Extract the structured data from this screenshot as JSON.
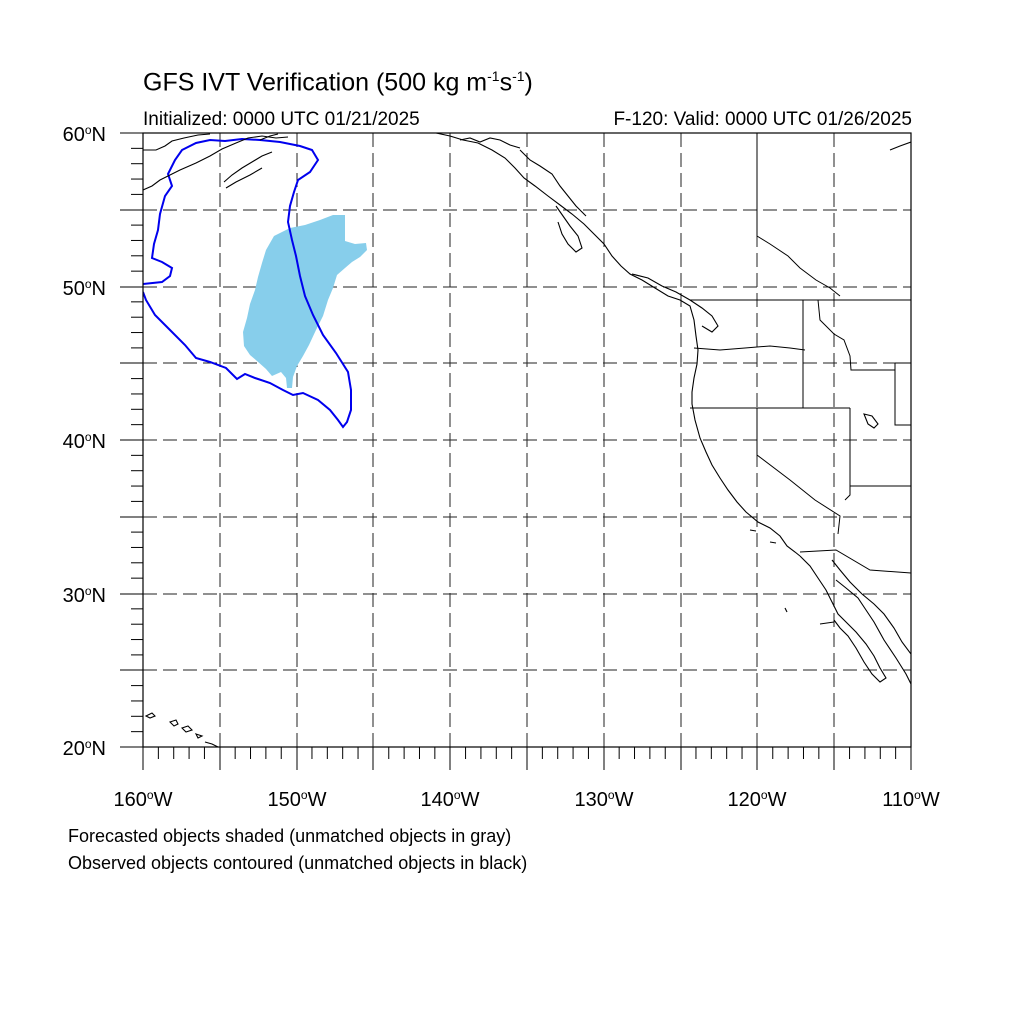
{
  "title": {
    "main": "GFS IVT Verification (500 kg m",
    "exp1": "-1",
    "mid": "s",
    "exp2": "-1",
    "end": ")"
  },
  "initialized": "Initialized: 0000 UTC 01/21/2025",
  "valid": "F-120: Valid: 0000 UTC 01/26/2025",
  "notes": {
    "forecast": "Forecasted objects shaded (unmatched objects in gray)",
    "observed": "Observed objects contoured (unmatched objects in black)"
  },
  "map": {
    "lon_range": [
      -160,
      -110
    ],
    "lat_range": [
      20,
      60
    ],
    "lon_labels": [
      "160oW",
      "150oW",
      "140oW",
      "130oW",
      "120oW",
      "110oW"
    ],
    "lat_labels": [
      "60oN",
      "50oN",
      "40oN",
      "30oN",
      "20oN"
    ],
    "grid": "dashed",
    "colors": {
      "forecast_fill": "#87ceeb",
      "observed_contour": "#0000ee",
      "coast": "#000000"
    }
  }
}
